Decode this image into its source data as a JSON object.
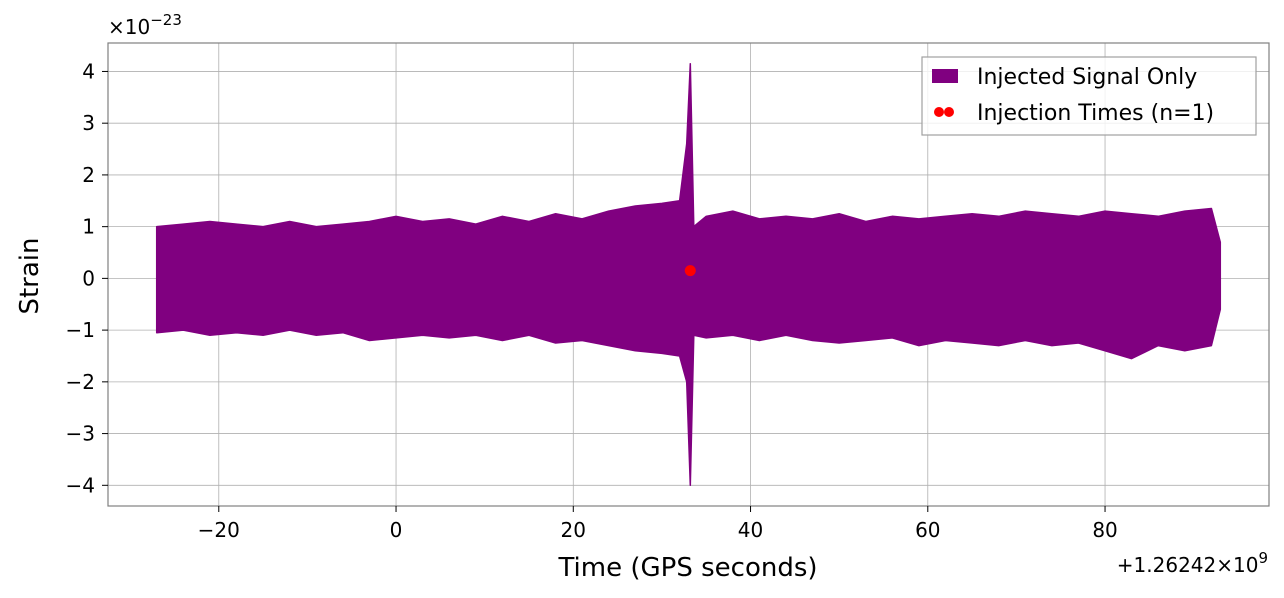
{
  "chart_data": {
    "type": "line",
    "title": "",
    "xlabel": "Time (GPS seconds)",
    "ylabel": "Strain",
    "x_offset_label": "+1.26242×10",
    "x_offset_label_exp": "9",
    "y_scale_label": "×10",
    "y_scale_label_exp": "−23",
    "xlim": [
      -32.5,
      98.5
    ],
    "ylim": [
      -4.4,
      4.55
    ],
    "x_ticks": [
      -20,
      0,
      20,
      40,
      60,
      80
    ],
    "x_tick_labels": [
      "−20",
      "0",
      "20",
      "40",
      "60",
      "80"
    ],
    "y_ticks": [
      -4,
      -3,
      -2,
      -1,
      0,
      1,
      2,
      3,
      4
    ],
    "y_tick_labels": [
      "−4",
      "−3",
      "−2",
      "−1",
      "0",
      "1",
      "2",
      "3",
      "4"
    ],
    "grid": true,
    "legend_position": "top-right",
    "series": [
      {
        "name": "Injected Signal Only",
        "kind": "band",
        "color": "#800080",
        "x": [
          -27,
          -24,
          -21,
          -18,
          -15,
          -12,
          -9,
          -6,
          -3,
          0,
          3,
          6,
          9,
          12,
          15,
          18,
          21,
          24,
          27,
          30,
          32,
          32.8,
          33.2,
          33.6,
          35,
          38,
          41,
          44,
          47,
          50,
          53,
          56,
          59,
          62,
          65,
          68,
          71,
          74,
          77,
          80,
          83,
          86,
          89,
          92,
          93
        ],
        "y_max": [
          1.0,
          1.05,
          1.1,
          1.05,
          1.0,
          1.1,
          1.0,
          1.05,
          1.1,
          1.2,
          1.1,
          1.15,
          1.05,
          1.2,
          1.1,
          1.25,
          1.15,
          1.3,
          1.4,
          1.45,
          1.5,
          2.6,
          4.15,
          1.0,
          1.2,
          1.3,
          1.15,
          1.2,
          1.15,
          1.25,
          1.1,
          1.2,
          1.15,
          1.2,
          1.25,
          1.2,
          1.3,
          1.25,
          1.2,
          1.3,
          1.25,
          1.2,
          1.3,
          1.35,
          0.7
        ],
        "y_min": [
          -1.05,
          -1.0,
          -1.1,
          -1.05,
          -1.1,
          -1.0,
          -1.1,
          -1.05,
          -1.2,
          -1.15,
          -1.1,
          -1.15,
          -1.1,
          -1.2,
          -1.1,
          -1.25,
          -1.2,
          -1.3,
          -1.4,
          -1.45,
          -1.5,
          -2.0,
          -4.0,
          -1.1,
          -1.15,
          -1.1,
          -1.2,
          -1.1,
          -1.2,
          -1.25,
          -1.2,
          -1.15,
          -1.3,
          -1.2,
          -1.25,
          -1.3,
          -1.2,
          -1.3,
          -1.25,
          -1.4,
          -1.55,
          -1.3,
          -1.4,
          -1.3,
          -0.6
        ]
      },
      {
        "name": "Injection Times (n=1)",
        "kind": "scatter",
        "color": "#ff0000",
        "x": [
          33.2
        ],
        "y": [
          0.15
        ]
      }
    ]
  }
}
